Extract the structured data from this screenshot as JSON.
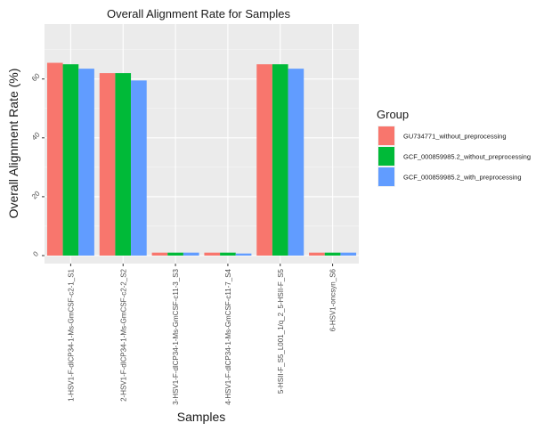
{
  "chart_data": {
    "type": "bar",
    "title": "Overall Alignment Rate for Samples",
    "xlabel": "Samples",
    "ylabel": "Overall Alignment Rate (%)",
    "ylim": [
      0,
      68
    ],
    "yticks": [
      0,
      20,
      40,
      60
    ],
    "ytick_labels": [
      "0",
      "20",
      "40",
      "60"
    ],
    "grid": true,
    "legend": {
      "title": "Group",
      "position": "right"
    },
    "categories": [
      "1-HSV1-F-dlCP34-1-Ms-GmCSF-c2-1_S1",
      "2-HSV1-F-dlCP34-1-Ms-GmCSF-c2-2_S2",
      "3-HSV1-F-dlCP34-1-Ms-GmCSF-c11-3_S3",
      "4-HSV1-F-dlCP34-1-Ms-GmCSF-c11-7_S4",
      "5-HSII-F_S5_L001_1/q_2_5-HSII-F_S5",
      "6-HSV1-oncsyn_S6"
    ],
    "series": [
      {
        "name": "GU734771_without_preprocessing",
        "color": "#F8766D",
        "values": [
          65.5,
          62.0,
          1.0,
          1.0,
          65.0,
          1.0
        ]
      },
      {
        "name": "GCF_000859985.2_without_preprocessing",
        "color": "#00BA38",
        "values": [
          65.0,
          62.0,
          1.0,
          1.0,
          65.0,
          1.0
        ]
      },
      {
        "name": "GCF_000859985.2_with_preprocessing",
        "color": "#619CFF",
        "values": [
          63.5,
          59.5,
          1.0,
          0.7,
          63.5,
          1.0
        ]
      }
    ]
  }
}
